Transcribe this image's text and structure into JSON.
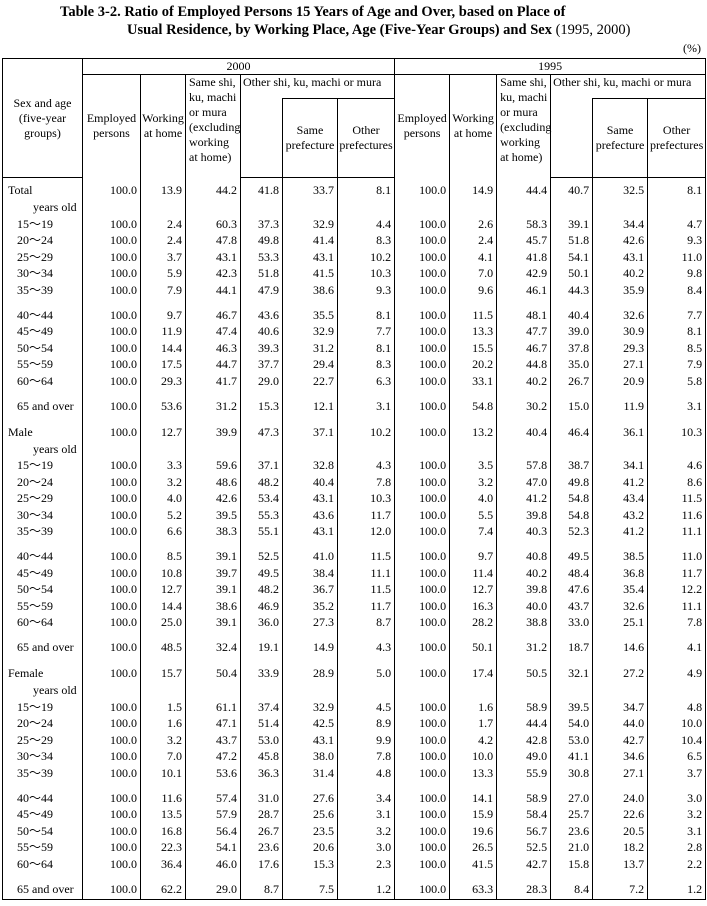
{
  "title": {
    "line1": "Table 3-2. Ratio of Employed Persons 15 Years of Age and Over, based on Place of",
    "line2": "Usual Residence, by Working Place, Age (Five-Year Groups) and Sex",
    "years": "(1995, 2000)"
  },
  "unit": "(%)",
  "table": {
    "stub_header": "Sex and age (five-year groups)",
    "years": [
      "2000",
      "1995"
    ],
    "columns": {
      "employed": "Employed persons",
      "at_home": "Working at home",
      "same_shi": "Same shi, ku, machi or mura (excluding working at home)",
      "other_shi": "Other shi, ku, machi or mura",
      "same_pref": "Same prefecture",
      "other_pref": "Other prefectures"
    },
    "sections": [
      {
        "label": "Total",
        "values": [
          "100.0",
          "13.9",
          "44.2",
          "41.8",
          "33.7",
          "8.1",
          "100.0",
          "14.9",
          "44.4",
          "40.7",
          "32.5",
          "8.1"
        ],
        "subheader": "years old",
        "groups": [
          [
            {
              "label": "15～19",
              "values": [
                "100.0",
                "2.4",
                "60.3",
                "37.3",
                "32.9",
                "4.4",
                "100.0",
                "2.6",
                "58.3",
                "39.1",
                "34.4",
                "4.7"
              ]
            },
            {
              "label": "20～24",
              "values": [
                "100.0",
                "2.4",
                "47.8",
                "49.8",
                "41.4",
                "8.3",
                "100.0",
                "2.4",
                "45.7",
                "51.8",
                "42.6",
                "9.3"
              ]
            },
            {
              "label": "25～29",
              "values": [
                "100.0",
                "3.7",
                "43.1",
                "53.3",
                "43.1",
                "10.2",
                "100.0",
                "4.1",
                "41.8",
                "54.1",
                "43.1",
                "11.0"
              ]
            },
            {
              "label": "30～34",
              "values": [
                "100.0",
                "5.9",
                "42.3",
                "51.8",
                "41.5",
                "10.3",
                "100.0",
                "7.0",
                "42.9",
                "50.1",
                "40.2",
                "9.8"
              ]
            },
            {
              "label": "35～39",
              "values": [
                "100.0",
                "7.9",
                "44.1",
                "47.9",
                "38.6",
                "9.3",
                "100.0",
                "9.6",
                "46.1",
                "44.3",
                "35.9",
                "8.4"
              ]
            }
          ],
          [
            {
              "label": "40～44",
              "values": [
                "100.0",
                "9.7",
                "46.7",
                "43.6",
                "35.5",
                "8.1",
                "100.0",
                "11.5",
                "48.1",
                "40.4",
                "32.6",
                "7.7"
              ]
            },
            {
              "label": "45～49",
              "values": [
                "100.0",
                "11.9",
                "47.4",
                "40.6",
                "32.9",
                "7.7",
                "100.0",
                "13.3",
                "47.7",
                "39.0",
                "30.9",
                "8.1"
              ]
            },
            {
              "label": "50～54",
              "values": [
                "100.0",
                "14.4",
                "46.3",
                "39.3",
                "31.2",
                "8.1",
                "100.0",
                "15.5",
                "46.7",
                "37.8",
                "29.3",
                "8.5"
              ]
            },
            {
              "label": "55～59",
              "values": [
                "100.0",
                "17.5",
                "44.7",
                "37.7",
                "29.4",
                "8.3",
                "100.0",
                "20.2",
                "44.8",
                "35.0",
                "27.1",
                "7.9"
              ]
            },
            {
              "label": "60～64",
              "values": [
                "100.0",
                "29.3",
                "41.7",
                "29.0",
                "22.7",
                "6.3",
                "100.0",
                "33.1",
                "40.2",
                "26.7",
                "20.9",
                "5.8"
              ]
            }
          ],
          [
            {
              "label": "65 and over",
              "values": [
                "100.0",
                "53.6",
                "31.2",
                "15.3",
                "12.1",
                "3.1",
                "100.0",
                "54.8",
                "30.2",
                "15.0",
                "11.9",
                "3.1"
              ]
            }
          ]
        ]
      },
      {
        "label": "Male",
        "values": [
          "100.0",
          "12.7",
          "39.9",
          "47.3",
          "37.1",
          "10.2",
          "100.0",
          "13.2",
          "40.4",
          "46.4",
          "36.1",
          "10.3"
        ],
        "subheader": "years old",
        "groups": [
          [
            {
              "label": "15～19",
              "values": [
                "100.0",
                "3.3",
                "59.6",
                "37.1",
                "32.8",
                "4.3",
                "100.0",
                "3.5",
                "57.8",
                "38.7",
                "34.1",
                "4.6"
              ]
            },
            {
              "label": "20～24",
              "values": [
                "100.0",
                "3.2",
                "48.6",
                "48.2",
                "40.4",
                "7.8",
                "100.0",
                "3.2",
                "47.0",
                "49.8",
                "41.2",
                "8.6"
              ]
            },
            {
              "label": "25～29",
              "values": [
                "100.0",
                "4.0",
                "42.6",
                "53.4",
                "43.1",
                "10.3",
                "100.0",
                "4.0",
                "41.2",
                "54.8",
                "43.4",
                "11.5"
              ]
            },
            {
              "label": "30～34",
              "values": [
                "100.0",
                "5.2",
                "39.5",
                "55.3",
                "43.6",
                "11.7",
                "100.0",
                "5.5",
                "39.8",
                "54.8",
                "43.2",
                "11.6"
              ]
            },
            {
              "label": "35～39",
              "values": [
                "100.0",
                "6.6",
                "38.3",
                "55.1",
                "43.1",
                "12.0",
                "100.0",
                "7.4",
                "40.3",
                "52.3",
                "41.2",
                "11.1"
              ]
            }
          ],
          [
            {
              "label": "40～44",
              "values": [
                "100.0",
                "8.5",
                "39.1",
                "52.5",
                "41.0",
                "11.5",
                "100.0",
                "9.7",
                "40.8",
                "49.5",
                "38.5",
                "11.0"
              ]
            },
            {
              "label": "45～49",
              "values": [
                "100.0",
                "10.8",
                "39.7",
                "49.5",
                "38.4",
                "11.1",
                "100.0",
                "11.4",
                "40.2",
                "48.4",
                "36.8",
                "11.7"
              ]
            },
            {
              "label": "50～54",
              "values": [
                "100.0",
                "12.7",
                "39.1",
                "48.2",
                "36.7",
                "11.5",
                "100.0",
                "12.7",
                "39.8",
                "47.6",
                "35.4",
                "12.2"
              ]
            },
            {
              "label": "55～59",
              "values": [
                "100.0",
                "14.4",
                "38.6",
                "46.9",
                "35.2",
                "11.7",
                "100.0",
                "16.3",
                "40.0",
                "43.7",
                "32.6",
                "11.1"
              ]
            },
            {
              "label": "60～64",
              "values": [
                "100.0",
                "25.0",
                "39.1",
                "36.0",
                "27.3",
                "8.7",
                "100.0",
                "28.2",
                "38.8",
                "33.0",
                "25.1",
                "7.8"
              ]
            }
          ],
          [
            {
              "label": "65 and over",
              "values": [
                "100.0",
                "48.5",
                "32.4",
                "19.1",
                "14.9",
                "4.3",
                "100.0",
                "50.1",
                "31.2",
                "18.7",
                "14.6",
                "4.1"
              ]
            }
          ]
        ]
      },
      {
        "label": "Female",
        "values": [
          "100.0",
          "15.7",
          "50.4",
          "33.9",
          "28.9",
          "5.0",
          "100.0",
          "17.4",
          "50.5",
          "32.1",
          "27.2",
          "4.9"
        ],
        "subheader": "years old",
        "groups": [
          [
            {
              "label": "15～19",
              "values": [
                "100.0",
                "1.5",
                "61.1",
                "37.4",
                "32.9",
                "4.5",
                "100.0",
                "1.6",
                "58.9",
                "39.5",
                "34.7",
                "4.8"
              ]
            },
            {
              "label": "20～24",
              "values": [
                "100.0",
                "1.6",
                "47.1",
                "51.4",
                "42.5",
                "8.9",
                "100.0",
                "1.7",
                "44.4",
                "54.0",
                "44.0",
                "10.0"
              ]
            },
            {
              "label": "25～29",
              "values": [
                "100.0",
                "3.2",
                "43.7",
                "53.0",
                "43.1",
                "9.9",
                "100.0",
                "4.2",
                "42.8",
                "53.0",
                "42.7",
                "10.4"
              ]
            },
            {
              "label": "30～34",
              "values": [
                "100.0",
                "7.0",
                "47.2",
                "45.8",
                "38.0",
                "7.8",
                "100.0",
                "10.0",
                "49.0",
                "41.1",
                "34.6",
                "6.5"
              ]
            },
            {
              "label": "35～39",
              "values": [
                "100.0",
                "10.1",
                "53.6",
                "36.3",
                "31.4",
                "4.8",
                "100.0",
                "13.3",
                "55.9",
                "30.8",
                "27.1",
                "3.7"
              ]
            }
          ],
          [
            {
              "label": "40～44",
              "values": [
                "100.0",
                "11.6",
                "57.4",
                "31.0",
                "27.6",
                "3.4",
                "100.0",
                "14.1",
                "58.9",
                "27.0",
                "24.0",
                "3.0"
              ]
            },
            {
              "label": "45～49",
              "values": [
                "100.0",
                "13.5",
                "57.9",
                "28.7",
                "25.6",
                "3.1",
                "100.0",
                "15.9",
                "58.4",
                "25.7",
                "22.6",
                "3.2"
              ]
            },
            {
              "label": "50～54",
              "values": [
                "100.0",
                "16.8",
                "56.4",
                "26.7",
                "23.5",
                "3.2",
                "100.0",
                "19.6",
                "56.7",
                "23.6",
                "20.5",
                "3.1"
              ]
            },
            {
              "label": "55～59",
              "values": [
                "100.0",
                "22.3",
                "54.1",
                "23.6",
                "20.6",
                "3.0",
                "100.0",
                "26.5",
                "52.5",
                "21.0",
                "18.2",
                "2.8"
              ]
            },
            {
              "label": "60～64",
              "values": [
                "100.0",
                "36.4",
                "46.0",
                "17.6",
                "15.3",
                "2.3",
                "100.0",
                "41.5",
                "42.7",
                "15.8",
                "13.7",
                "2.2"
              ]
            }
          ],
          [
            {
              "label": "65 and over",
              "values": [
                "100.0",
                "62.2",
                "29.0",
                "8.7",
                "7.5",
                "1.2",
                "100.0",
                "63.3",
                "28.3",
                "8.4",
                "7.2",
                "1.2"
              ]
            }
          ]
        ]
      }
    ]
  }
}
